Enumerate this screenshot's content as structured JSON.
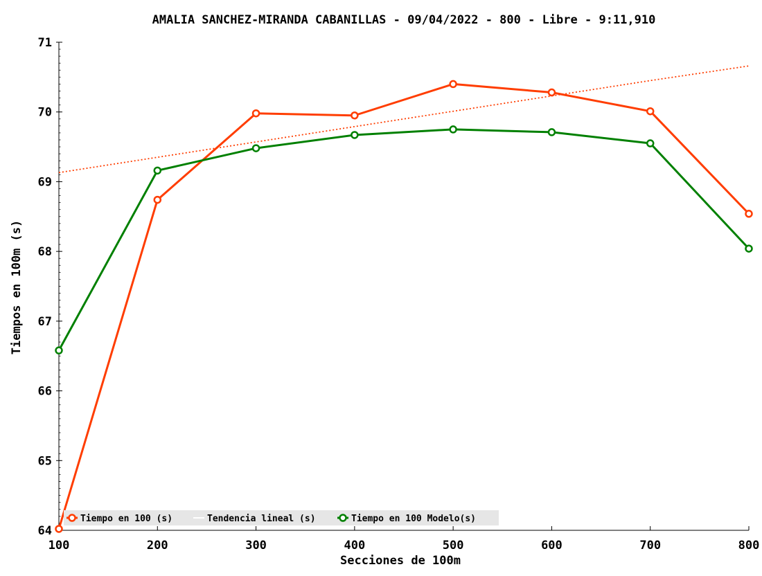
{
  "chart_data": {
    "type": "line",
    "title": "AMALIA SANCHEZ-MIRANDA CABANILLAS - 09/04/2022 - 800 - Libre - 9:11,910",
    "xlabel": "Secciones de 100m",
    "ylabel": "Tiempos en 100m (s)",
    "x": [
      100,
      200,
      300,
      400,
      500,
      600,
      700,
      800
    ],
    "xlim": [
      100,
      800
    ],
    "ylim": [
      64,
      71
    ],
    "x_ticks": [
      "100",
      "200",
      "300",
      "400",
      "500",
      "600",
      "700",
      "800"
    ],
    "y_ticks": [
      "64",
      "65",
      "66",
      "67",
      "68",
      "69",
      "70",
      "71"
    ],
    "grid": false,
    "legend_position": "bottom-left",
    "series": [
      {
        "name": "Tiempo en 100 (s)",
        "color": "#ff3d00",
        "values": [
          64.02,
          68.74,
          69.98,
          69.95,
          70.4,
          70.28,
          70.01,
          68.54
        ]
      },
      {
        "name": "Tendencia lineal (s)",
        "color": "#ff3d00",
        "style": "dotted",
        "values": [
          69.13,
          69.35,
          69.57,
          69.79,
          70.01,
          70.23,
          70.45,
          70.66
        ]
      },
      {
        "name": "Tiempo en 100 Modelo(s)",
        "color": "#008000",
        "values": [
          66.58,
          69.16,
          69.48,
          69.67,
          69.75,
          69.71,
          69.55,
          68.04
        ]
      }
    ]
  }
}
